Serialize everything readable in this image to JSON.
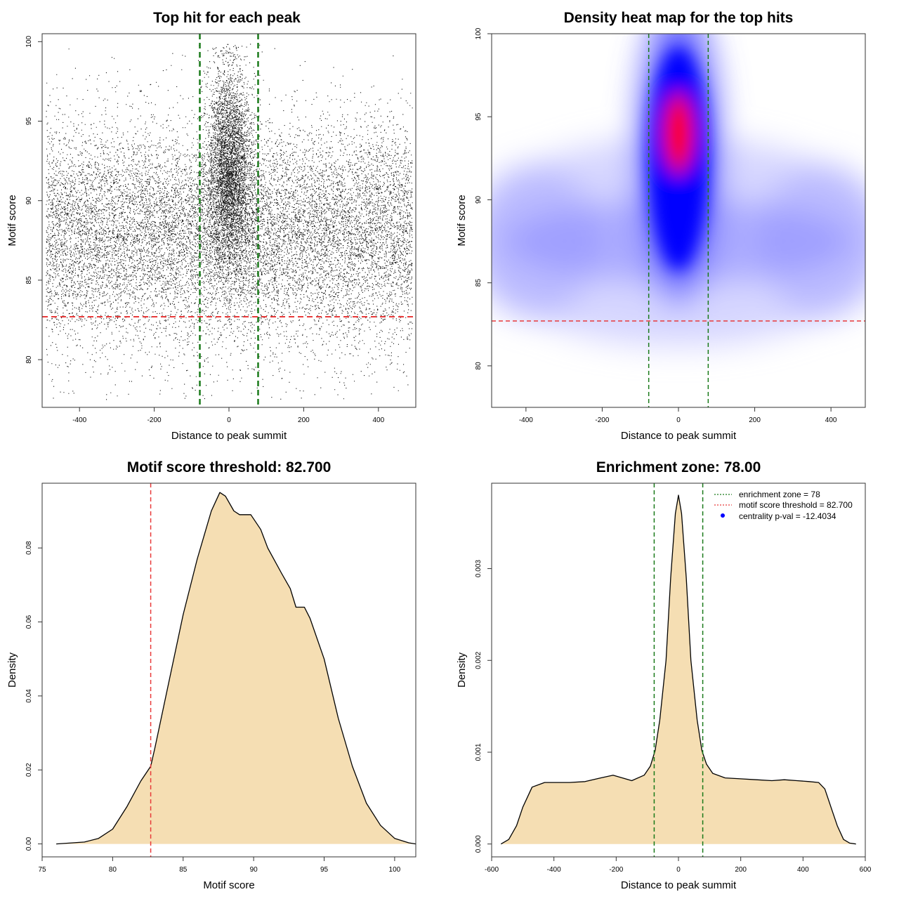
{
  "chart_data": [
    {
      "type": "scatter",
      "title": "Top hit for each peak",
      "xlabel": "Distance to peak summit",
      "ylabel": "Motif score",
      "xlim": [
        -500,
        500
      ],
      "ylim": [
        77,
        100.5
      ],
      "xticks": [
        -400,
        -200,
        0,
        200,
        400
      ],
      "yticks": [
        80,
        85,
        90,
        95,
        100
      ],
      "background_points": {
        "x_range": [
          -490,
          490
        ],
        "y_center": 88,
        "y_spread": 3.5,
        "approx_count": 14000
      },
      "central_cluster": {
        "x_range": [
          -75,
          75
        ],
        "x_center": 0,
        "y_center": 92,
        "approx_count": 4500
      },
      "lines": [
        {
          "orientation": "vertical",
          "value": -78,
          "color": "#1a7a1a",
          "style": "dashed"
        },
        {
          "orientation": "vertical",
          "value": 78,
          "color": "#1a7a1a",
          "style": "dashed"
        },
        {
          "orientation": "horizontal",
          "value": 82.7,
          "color": "#e83a3a",
          "style": "dashed"
        }
      ]
    },
    {
      "type": "heatmap",
      "title": "Density heat map for the top hits",
      "xlabel": "Distance to peak summit",
      "ylabel": "Motif score",
      "xlim": [
        -490,
        490
      ],
      "ylim": [
        77.5,
        100
      ],
      "xticks": [
        -400,
        -200,
        0,
        200,
        400
      ],
      "yticks": [
        80,
        85,
        90,
        95,
        100
      ],
      "colors": [
        "#ffffff",
        "#0000ff",
        "#ff0000"
      ],
      "density_peak": {
        "x": 0,
        "y": 94
      },
      "background_band": {
        "y_center": 87.5
      },
      "lines": [
        {
          "orientation": "vertical",
          "value": -78,
          "color": "#1a7a1a",
          "style": "dashed"
        },
        {
          "orientation": "vertical",
          "value": 78,
          "color": "#1a7a1a",
          "style": "dashed"
        },
        {
          "orientation": "horizontal",
          "value": 82.7,
          "color": "#e83a3a",
          "style": "dashed"
        }
      ]
    },
    {
      "type": "area",
      "title": "Motif score threshold: 82.700",
      "xlabel": "Motif score",
      "ylabel": "Density",
      "xlim": [
        75,
        101.5
      ],
      "ylim": [
        -0.0035,
        0.0975
      ],
      "xticks": [
        75,
        80,
        85,
        90,
        95,
        100
      ],
      "yticks": [
        0.0,
        0.02,
        0.04,
        0.06,
        0.08
      ],
      "fill_color": "#f5deb3",
      "x": [
        76,
        78,
        79,
        80,
        81,
        82,
        82.7,
        83,
        84,
        85,
        86,
        87,
        87.6,
        88,
        88.6,
        89,
        89.8,
        90.5,
        91,
        92,
        92.6,
        93,
        93.6,
        94,
        95,
        96,
        97,
        98,
        99,
        100,
        101,
        101.5
      ],
      "y": [
        0.0,
        0.0005,
        0.0015,
        0.004,
        0.01,
        0.017,
        0.021,
        0.026,
        0.044,
        0.062,
        0.077,
        0.09,
        0.095,
        0.094,
        0.09,
        0.089,
        0.089,
        0.085,
        0.08,
        0.073,
        0.069,
        0.064,
        0.064,
        0.061,
        0.05,
        0.034,
        0.021,
        0.011,
        0.005,
        0.0015,
        0.0003,
        0.0
      ],
      "lines": [
        {
          "orientation": "vertical",
          "value": 82.7,
          "color": "#e83a3a",
          "style": "dashed"
        }
      ]
    },
    {
      "type": "area",
      "title": "Enrichment zone: 78.00",
      "xlabel": "Distance to peak summit",
      "ylabel": "Density",
      "xlim": [
        -600,
        600
      ],
      "ylim": [
        -0.00014,
        0.00393
      ],
      "xticks": [
        -600,
        -400,
        -200,
        0,
        200,
        400,
        600
      ],
      "yticks": [
        "0.000",
        "0.001",
        "0.002",
        "0.003"
      ],
      "ytick_values": [
        0,
        0.001,
        0.002,
        0.003
      ],
      "fill_color": "#f5deb3",
      "x": [
        -570,
        -545,
        -520,
        -500,
        -470,
        -430,
        -400,
        -350,
        -300,
        -250,
        -210,
        -180,
        -150,
        -110,
        -90,
        -75,
        -60,
        -40,
        -25,
        -10,
        0,
        10,
        25,
        40,
        60,
        75,
        90,
        110,
        150,
        200,
        250,
        300,
        340,
        380,
        420,
        450,
        470,
        490,
        510,
        530,
        550,
        570
      ],
      "y": [
        0.0,
        5e-05,
        0.0002,
        0.0004,
        0.00062,
        0.00067,
        0.00067,
        0.00067,
        0.00068,
        0.00072,
        0.00075,
        0.00072,
        0.00069,
        0.00075,
        0.00085,
        0.00102,
        0.00135,
        0.002,
        0.0029,
        0.0036,
        0.0038,
        0.0036,
        0.0029,
        0.002,
        0.00135,
        0.00102,
        0.00087,
        0.00077,
        0.00072,
        0.00071,
        0.0007,
        0.00069,
        0.0007,
        0.00069,
        0.00068,
        0.00067,
        0.0006,
        0.0004,
        0.0002,
        5e-05,
        1e-05,
        0.0
      ],
      "lines": [
        {
          "orientation": "vertical",
          "value": -78,
          "color": "#1a7a1a",
          "style": "dashed"
        },
        {
          "orientation": "vertical",
          "value": 78,
          "color": "#1a7a1a",
          "style": "dashed"
        }
      ],
      "legend": {
        "placement": "top-right",
        "entries": [
          {
            "label": "enrichment zone = 78",
            "color": "#1a7a1a",
            "symbol": "dotted-line"
          },
          {
            "label": "motif score threshold = 82.700",
            "color": "#e83a3a",
            "symbol": "dotted-line"
          },
          {
            "label": "centrality p-val = -12.4034",
            "color": "#0000ff",
            "symbol": "point"
          }
        ]
      }
    }
  ]
}
